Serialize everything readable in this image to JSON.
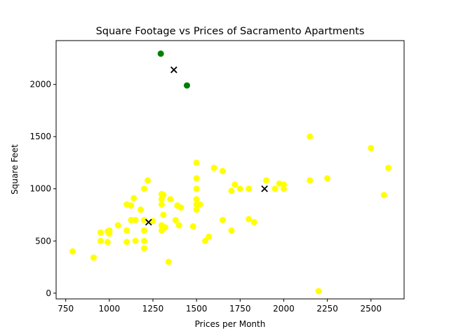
{
  "chart_data": {
    "type": "scatter",
    "title": "Square Footage vs Prices of Sacramento Apartments",
    "xlabel": "Prices per Month",
    "ylabel": "Square Feet",
    "xlim": [
      695,
      2690
    ],
    "ylim": [
      -55,
      2420
    ],
    "xticks": [
      750,
      1000,
      1250,
      1500,
      1750,
      2000,
      2250,
      2500
    ],
    "yticks": [
      0,
      500,
      1000,
      1500,
      2000
    ],
    "grid": false,
    "legend": "none",
    "colors": {
      "yellow": "#ffff00",
      "green": "#008000",
      "black": "#000000"
    },
    "series": [
      {
        "color": "yellow",
        "marker": "circle",
        "points": [
          [
            790,
            400
          ],
          [
            910,
            340
          ],
          [
            950,
            500
          ],
          [
            950,
            580
          ],
          [
            990,
            490
          ],
          [
            990,
            590
          ],
          [
            1000,
            600
          ],
          [
            1000,
            570
          ],
          [
            1050,
            650
          ],
          [
            1100,
            490
          ],
          [
            1100,
            600
          ],
          [
            1100,
            850
          ],
          [
            1125,
            840
          ],
          [
            1125,
            700
          ],
          [
            1140,
            910
          ],
          [
            1150,
            500
          ],
          [
            1150,
            700
          ],
          [
            1180,
            800
          ],
          [
            1200,
            1000
          ],
          [
            1200,
            600
          ],
          [
            1200,
            500
          ],
          [
            1200,
            700
          ],
          [
            1200,
            430
          ],
          [
            1220,
            1080
          ],
          [
            1250,
            690
          ],
          [
            1300,
            950
          ],
          [
            1300,
            900
          ],
          [
            1300,
            850
          ],
          [
            1300,
            650
          ],
          [
            1300,
            600
          ],
          [
            1310,
            940
          ],
          [
            1310,
            750
          ],
          [
            1320,
            630
          ],
          [
            1340,
            300
          ],
          [
            1350,
            900
          ],
          [
            1380,
            700
          ],
          [
            1390,
            840
          ],
          [
            1400,
            650
          ],
          [
            1410,
            820
          ],
          [
            1480,
            640
          ],
          [
            1500,
            1250
          ],
          [
            1500,
            1100
          ],
          [
            1500,
            1000
          ],
          [
            1500,
            900
          ],
          [
            1500,
            850
          ],
          [
            1500,
            800
          ],
          [
            1520,
            850
          ],
          [
            1550,
            500
          ],
          [
            1570,
            540
          ],
          [
            1600,
            1200
          ],
          [
            1650,
            1170
          ],
          [
            1650,
            700
          ],
          [
            1700,
            980
          ],
          [
            1700,
            600
          ],
          [
            1720,
            1040
          ],
          [
            1750,
            1000
          ],
          [
            1800,
            1000
          ],
          [
            1800,
            710
          ],
          [
            1830,
            680
          ],
          [
            1900,
            1080
          ],
          [
            1950,
            1000
          ],
          [
            1975,
            1050
          ],
          [
            2000,
            1040
          ],
          [
            2000,
            1000
          ],
          [
            2150,
            1500
          ],
          [
            2150,
            1080
          ],
          [
            2200,
            20
          ],
          [
            2250,
            1100
          ],
          [
            2500,
            1390
          ],
          [
            2575,
            940
          ],
          [
            2600,
            1200
          ]
        ]
      },
      {
        "color": "green",
        "marker": "circle",
        "points": [
          [
            1295,
            2295
          ],
          [
            1445,
            1990
          ]
        ]
      },
      {
        "color": "black",
        "marker": "x",
        "points": [
          [
            1370,
            2140
          ],
          [
            1225,
            680
          ],
          [
            1890,
            1000
          ]
        ]
      }
    ]
  }
}
